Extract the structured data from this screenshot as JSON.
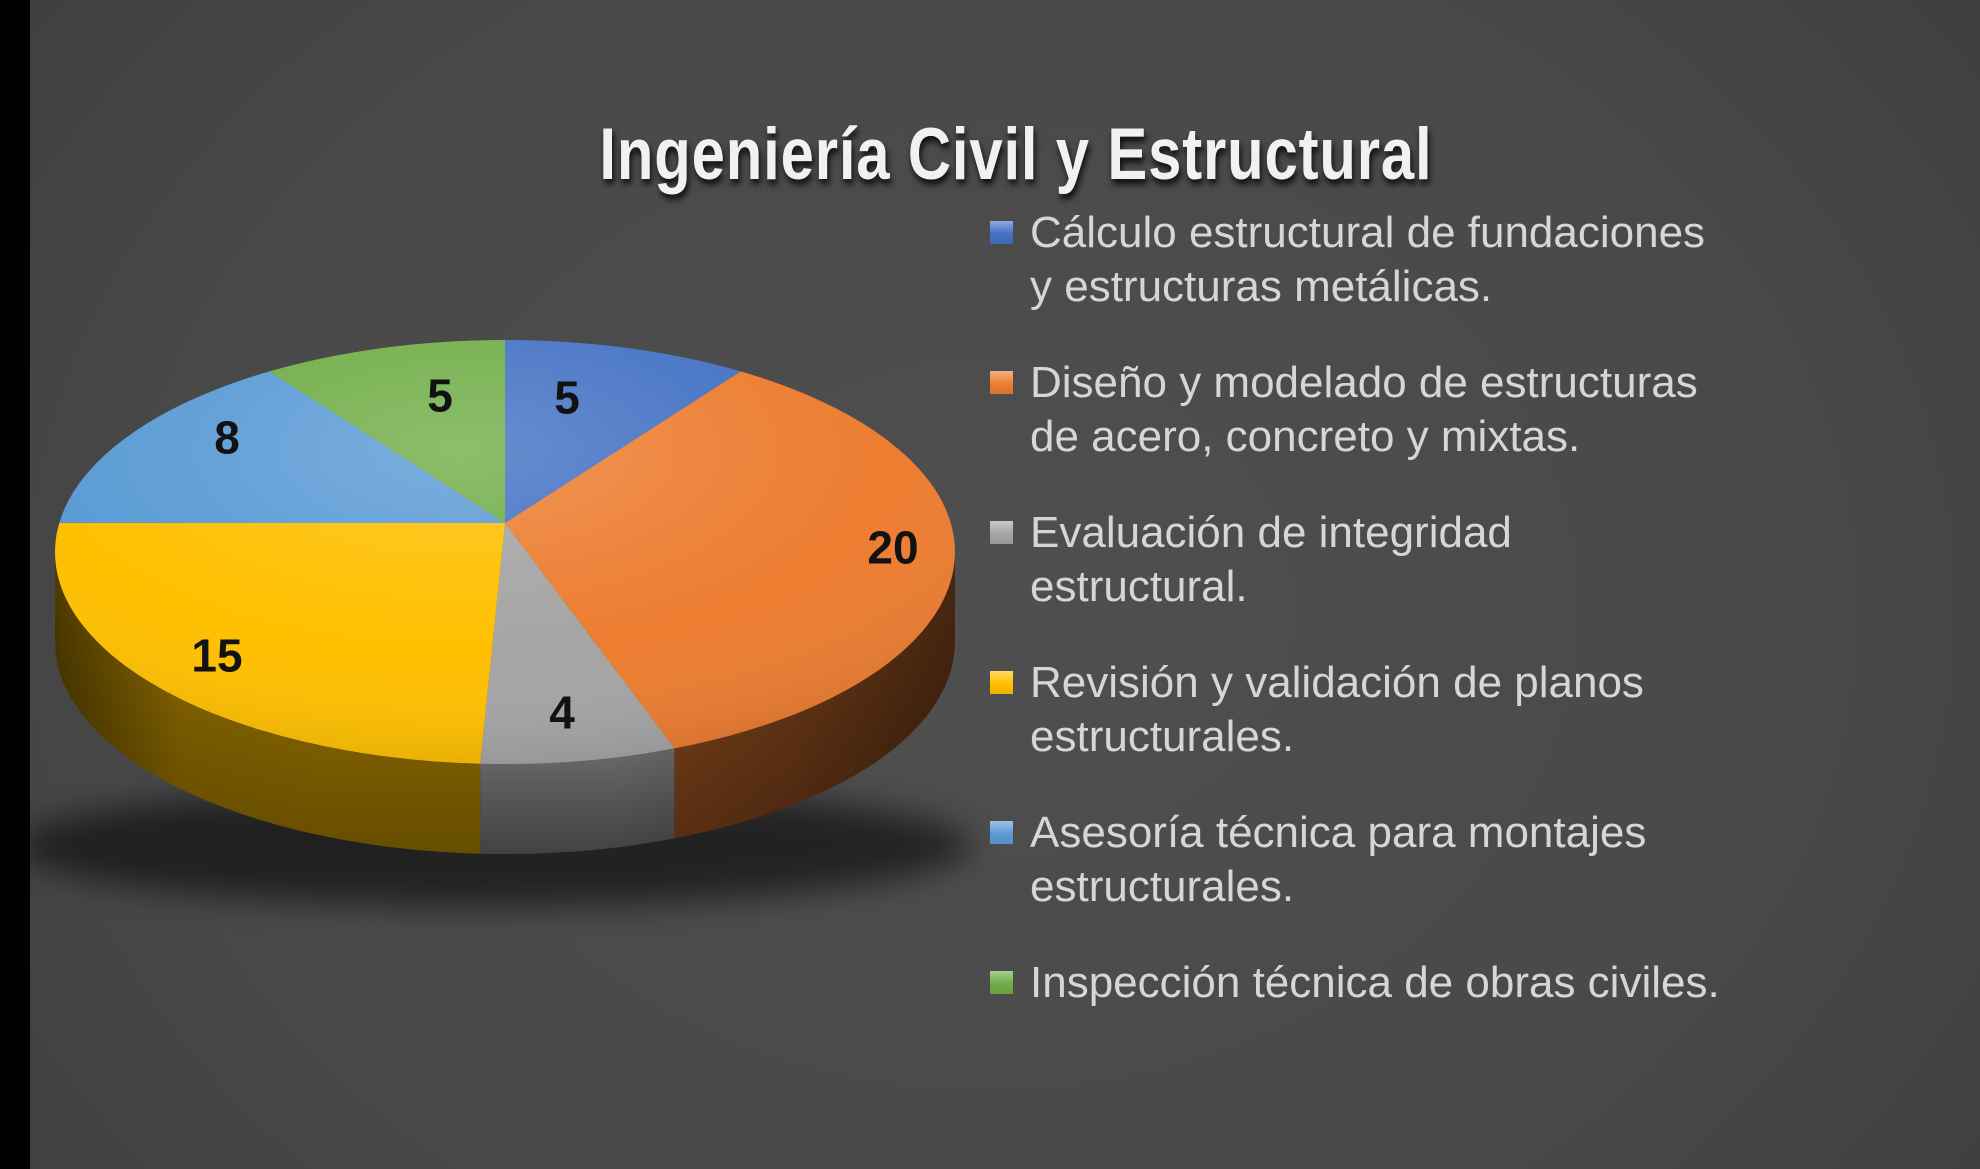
{
  "slide": {
    "title": "Ingeniería Civil y Estructural"
  },
  "chart_data": {
    "type": "pie",
    "style": "3d-perspective",
    "title": "Ingeniería Civil y Estructural",
    "direction": "clockwise",
    "start_angle_deg": 0,
    "legend_position": "right",
    "data_labels": "values",
    "total": 57,
    "categories": [
      "Cálculo estructural de fundaciones y estructuras metálicas.",
      "Diseño y modelado de estructuras de acero, concreto y mixtas.",
      "Evaluación de integridad estructural.",
      "Revisión y validación de planos estructurales.",
      "Asesoría técnica para montajes estructurales.",
      "Inspección técnica de obras civiles."
    ],
    "values": [
      5,
      20,
      4,
      15,
      8,
      5
    ],
    "colors": [
      "#4472C4",
      "#ED7D31",
      "#A5A5A5",
      "#FFC000",
      "#5B9BD5",
      "#70AD47"
    ],
    "slices": [
      {
        "category": "Cálculo estructural de fundaciones y estructuras metálicas.",
        "label_lines": [
          "Cálculo estructural de fundaciones",
          "y estructuras metálicas."
        ],
        "value": 5,
        "color": "#4472C4"
      },
      {
        "category": "Diseño y modelado de estructuras de acero, concreto y mixtas.",
        "label_lines": [
          "Diseño y modelado de estructuras",
          "de acero, concreto y mixtas."
        ],
        "value": 20,
        "color": "#ED7D31"
      },
      {
        "category": "Evaluación de integridad estructural.",
        "label_lines": [
          "Evaluación de integridad",
          "estructural."
        ],
        "value": 4,
        "color": "#A5A5A5"
      },
      {
        "category": "Revisión y validación de planos estructurales.",
        "label_lines": [
          "Revisión y validación de planos",
          "estructurales."
        ],
        "value": 15,
        "color": "#FFC000"
      },
      {
        "category": "Asesoría técnica para montajes estructurales.",
        "label_lines": [
          "Asesoría técnica para montajes",
          "estructurales."
        ],
        "value": 8,
        "color": "#5B9BD5"
      },
      {
        "category": "Inspección técnica de obras civiles.",
        "label_lines": [
          "Inspección técnica de obras civiles."
        ],
        "value": 5,
        "color": "#70AD47"
      }
    ]
  },
  "colors": {
    "title_text": "#f1f1f1",
    "legend_text": "#d6d6d6",
    "data_label_text": "#121212",
    "background_center": "#4f4f4f",
    "background_edge": "#232323",
    "left_bar": "#000000"
  }
}
